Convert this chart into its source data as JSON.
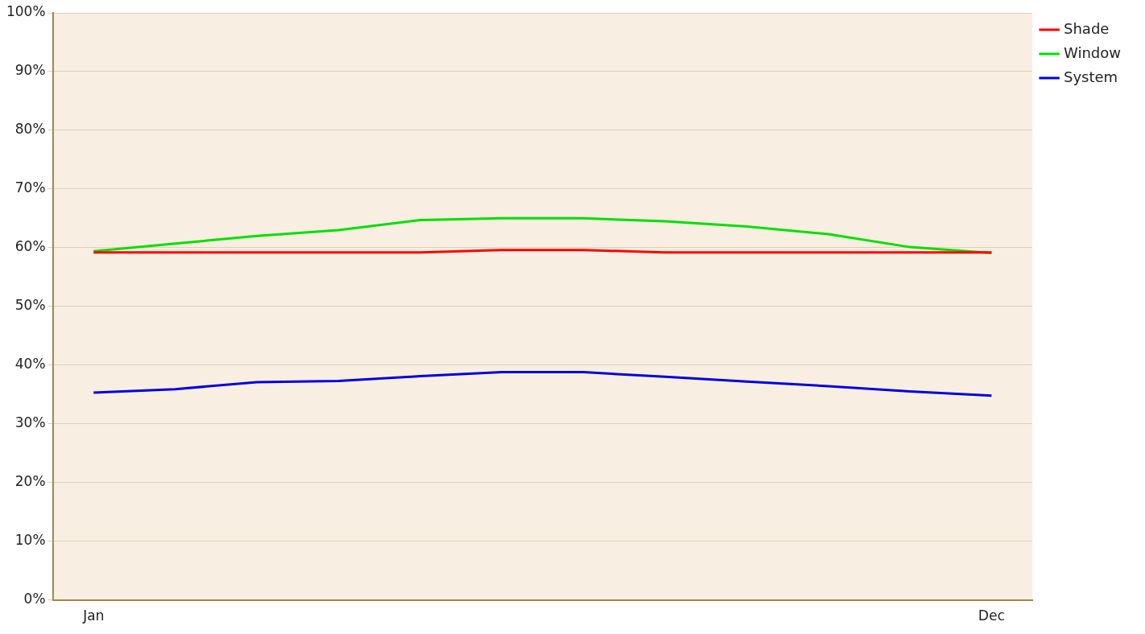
{
  "chart_data": {
    "type": "line",
    "categories": [
      "Jan",
      null,
      null,
      null,
      null,
      null,
      null,
      null,
      null,
      null,
      null,
      "Dec"
    ],
    "series": [
      {
        "name": "Shade",
        "color": "#ff0000",
        "values": [
          59.2,
          59.2,
          59.2,
          59.2,
          59.2,
          59.6,
          59.6,
          59.2,
          59.2,
          59.2,
          59.2,
          59.2
        ]
      },
      {
        "name": "Window",
        "color": "#00e000",
        "values": [
          59.4,
          60.7,
          62.0,
          63.0,
          64.7,
          65.0,
          65.0,
          64.5,
          63.6,
          62.3,
          60.1,
          59.1
        ]
      },
      {
        "name": "System",
        "color": "#0000e0",
        "values": [
          35.3,
          35.9,
          37.1,
          37.3,
          38.1,
          38.8,
          38.8,
          38.0,
          37.2,
          36.4,
          35.5,
          34.8
        ]
      }
    ],
    "ylim": [
      0,
      100
    ],
    "yticks": [
      {
        "value": 0,
        "label": "0%"
      },
      {
        "value": 10,
        "label": "10%"
      },
      {
        "value": 20,
        "label": "20%"
      },
      {
        "value": 30,
        "label": "30%"
      },
      {
        "value": 40,
        "label": "40%"
      },
      {
        "value": 50,
        "label": "50%"
      },
      {
        "value": 60,
        "label": "60%"
      },
      {
        "value": 70,
        "label": "70%"
      },
      {
        "value": 80,
        "label": "80%"
      },
      {
        "value": 90,
        "label": "90%"
      },
      {
        "value": 100,
        "label": "100%"
      }
    ],
    "grid": "y",
    "legend": "top right",
    "marker": "none",
    "line_style": "solid"
  }
}
